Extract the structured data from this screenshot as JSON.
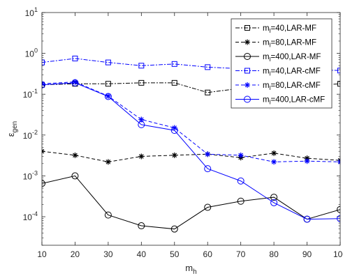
{
  "chart_data": {
    "type": "line",
    "xlabel": "m",
    "xlabel_sub": "h",
    "ylabel": "ε",
    "ylabel_sub": "gen",
    "y_scale": "log",
    "xlim": [
      10,
      100
    ],
    "ylim": [
      2e-05,
      10
    ],
    "x_ticks": [
      10,
      20,
      30,
      40,
      50,
      60,
      70,
      80,
      90,
      100
    ],
    "x_tick_labels": [
      "10",
      "20",
      "30",
      "40",
      "50",
      "60",
      "70",
      "80",
      "90",
      "100"
    ],
    "y_ticks": [
      0.0001,
      0.001,
      0.01,
      0.1,
      1,
      10
    ],
    "y_tick_labels": [
      {
        "base": "10",
        "exp": "-4"
      },
      {
        "base": "10",
        "exp": "-3"
      },
      {
        "base": "10",
        "exp": "-2"
      },
      {
        "base": "10",
        "exp": "-1"
      },
      {
        "base": "10",
        "exp": "0"
      },
      {
        "base": "10",
        "exp": "1"
      }
    ],
    "grid": false,
    "legend_position": "top-right",
    "x": [
      10,
      20,
      30,
      40,
      50,
      60,
      70,
      80,
      90,
      100
    ],
    "series": [
      {
        "name_main": "m",
        "name_sub": "l",
        "name_rest": "=40,LAR-MF",
        "color": "#000000",
        "dash": "6,2,2,2",
        "marker": "square",
        "values": [
          0.17,
          0.18,
          0.18,
          0.19,
          0.19,
          0.11,
          0.14,
          0.15,
          0.16,
          0.18
        ]
      },
      {
        "name_main": "m",
        "name_sub": "l",
        "name_rest": "=80,LAR-MF",
        "color": "#000000",
        "dash": "5,3",
        "marker": "asterisk",
        "values": [
          0.004,
          0.0032,
          0.0022,
          0.003,
          0.0032,
          0.0034,
          0.0028,
          0.0036,
          0.0027,
          0.0024
        ]
      },
      {
        "name_main": "m",
        "name_sub": "l",
        "name_rest": "=400,LAR-MF",
        "color": "#000000",
        "dash": "",
        "marker": "circle",
        "values": [
          0.00065,
          0.001,
          0.00011,
          6e-05,
          5e-05,
          0.00017,
          0.00024,
          0.0003,
          8.7e-05,
          0.00015
        ]
      },
      {
        "name_main": "m",
        "name_sub": "l",
        "name_rest": "=40,LAR-cMF",
        "color": "#0000ff",
        "dash": "6,2,2,2",
        "marker": "square",
        "values": [
          0.6,
          0.75,
          0.6,
          0.5,
          0.55,
          0.46,
          0.42,
          0.4,
          0.41,
          0.38
        ]
      },
      {
        "name_main": "m",
        "name_sub": "l",
        "name_rest": "=80,LAR-cMF",
        "color": "#0000ff",
        "dash": "5,3",
        "marker": "asterisk",
        "values": [
          0.18,
          0.2,
          0.09,
          0.024,
          0.015,
          0.0034,
          0.0032,
          0.0022,
          0.0023,
          0.0022
        ]
      },
      {
        "name_main": "m",
        "name_sub": "l",
        "name_rest": "=400,LAR-cMF",
        "color": "#0000ff",
        "dash": "",
        "marker": "circle",
        "values": [
          0.17,
          0.19,
          0.088,
          0.018,
          0.013,
          0.0015,
          0.00075,
          0.00022,
          8.7e-05,
          9e-05
        ]
      }
    ]
  }
}
